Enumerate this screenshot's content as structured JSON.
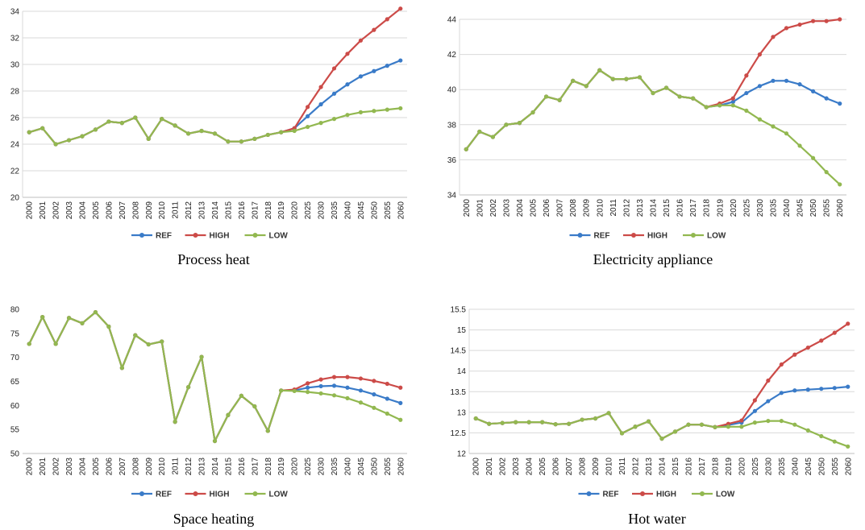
{
  "chart_data": [
    {
      "type": "line",
      "title": "Process heat",
      "categories": [
        "2000",
        "2001",
        "2002",
        "2003",
        "2004",
        "2005",
        "2006",
        "2007",
        "2008",
        "2009",
        "2010",
        "2011",
        "2012",
        "2013",
        "2014",
        "2015",
        "2016",
        "2017",
        "2018",
        "2019",
        "2020",
        "2025",
        "2030",
        "2035",
        "2040",
        "2045",
        "2050",
        "2055",
        "2060"
      ],
      "ylim": [
        20,
        34
      ],
      "ystep": 2,
      "ydecimals": 0,
      "grid": true,
      "legend": "bottom",
      "series": [
        {
          "name": "REF",
          "color": "#3a7bc8",
          "values": [
            24.9,
            25.2,
            24.0,
            24.3,
            24.6,
            25.1,
            25.7,
            25.6,
            26.0,
            24.4,
            25.9,
            25.4,
            24.8,
            25.0,
            24.8,
            24.2,
            24.2,
            24.4,
            24.7,
            24.9,
            25.2,
            26.1,
            27.0,
            27.8,
            28.5,
            29.1,
            29.5,
            29.9,
            30.3
          ]
        },
        {
          "name": "HIGH",
          "color": "#cc4b48",
          "values": [
            24.9,
            25.2,
            24.0,
            24.3,
            24.6,
            25.1,
            25.7,
            25.6,
            26.0,
            24.4,
            25.9,
            25.4,
            24.8,
            25.0,
            24.8,
            24.2,
            24.2,
            24.4,
            24.7,
            24.9,
            25.2,
            26.8,
            28.3,
            29.7,
            30.8,
            31.8,
            32.6,
            33.4,
            34.2
          ]
        },
        {
          "name": "LOW",
          "color": "#92b850",
          "values": [
            24.9,
            25.2,
            24.0,
            24.3,
            24.6,
            25.1,
            25.7,
            25.6,
            26.0,
            24.4,
            25.9,
            25.4,
            24.8,
            25.0,
            24.8,
            24.2,
            24.2,
            24.4,
            24.7,
            24.9,
            25.0,
            25.3,
            25.6,
            25.9,
            26.2,
            26.4,
            26.5,
            26.6,
            26.7
          ]
        }
      ]
    },
    {
      "type": "line",
      "title": "Electricity appliance",
      "categories": [
        "2000",
        "2001",
        "2002",
        "2003",
        "2004",
        "2005",
        "2006",
        "2007",
        "2008",
        "2009",
        "2010",
        "2011",
        "2012",
        "2013",
        "2014",
        "2015",
        "2016",
        "2017",
        "2018",
        "2019",
        "2020",
        "2025",
        "2030",
        "2035",
        "2040",
        "2045",
        "2050",
        "2055",
        "2060"
      ],
      "ylim": [
        34,
        44
      ],
      "ystep": 2,
      "ydecimals": 0,
      "grid": true,
      "legend": "bottom",
      "series": [
        {
          "name": "REF",
          "color": "#3a7bc8",
          "values": [
            36.6,
            37.6,
            37.3,
            38.0,
            38.1,
            38.7,
            39.6,
            39.4,
            40.5,
            40.2,
            41.1,
            40.6,
            40.6,
            40.7,
            39.8,
            40.1,
            39.6,
            39.5,
            39.0,
            39.1,
            39.3,
            39.8,
            40.2,
            40.5,
            40.5,
            40.3,
            39.9,
            39.5,
            39.2
          ]
        },
        {
          "name": "HIGH",
          "color": "#cc4b48",
          "values": [
            36.6,
            37.6,
            37.3,
            38.0,
            38.1,
            38.7,
            39.6,
            39.4,
            40.5,
            40.2,
            41.1,
            40.6,
            40.6,
            40.7,
            39.8,
            40.1,
            39.6,
            39.5,
            39.0,
            39.2,
            39.5,
            40.8,
            42.0,
            43.0,
            43.5,
            43.7,
            43.9,
            43.9,
            44.0
          ]
        },
        {
          "name": "LOW",
          "color": "#92b850",
          "values": [
            36.6,
            37.6,
            37.3,
            38.0,
            38.1,
            38.7,
            39.6,
            39.4,
            40.5,
            40.2,
            41.1,
            40.6,
            40.6,
            40.7,
            39.8,
            40.1,
            39.6,
            39.5,
            39.0,
            39.1,
            39.1,
            38.8,
            38.3,
            37.9,
            37.5,
            36.8,
            36.1,
            35.3,
            34.6
          ]
        }
      ]
    },
    {
      "type": "line",
      "title": "Space heating",
      "categories": [
        "2000",
        "2001",
        "2002",
        "2003",
        "2004",
        "2005",
        "2006",
        "2007",
        "2008",
        "2009",
        "2010",
        "2011",
        "2012",
        "2013",
        "2014",
        "2015",
        "2016",
        "2017",
        "2018",
        "2019",
        "2020",
        "2025",
        "2030",
        "2035",
        "2040",
        "2045",
        "2050",
        "2055",
        "2060"
      ],
      "ylim": [
        50,
        80
      ],
      "ystep": 5,
      "ydecimals": 0,
      "grid": false,
      "legend": "bottom",
      "series": [
        {
          "name": "REF",
          "color": "#3a7bc8",
          "values": [
            72.8,
            78.4,
            72.8,
            78.2,
            77.1,
            79.4,
            76.4,
            67.8,
            74.6,
            72.7,
            73.3,
            56.6,
            63.8,
            70.1,
            52.6,
            58.0,
            62.0,
            59.8,
            54.7,
            63.1,
            63.1,
            63.7,
            64.0,
            64.1,
            63.7,
            63.1,
            62.3,
            61.4,
            60.5
          ]
        },
        {
          "name": "HIGH",
          "color": "#cc4b48",
          "values": [
            72.8,
            78.4,
            72.8,
            78.2,
            77.1,
            79.4,
            76.4,
            67.8,
            74.6,
            72.7,
            73.3,
            56.6,
            63.8,
            70.1,
            52.6,
            58.0,
            62.0,
            59.8,
            54.7,
            63.1,
            63.3,
            64.6,
            65.4,
            65.9,
            65.9,
            65.6,
            65.1,
            64.5,
            63.7
          ]
        },
        {
          "name": "LOW",
          "color": "#92b850",
          "values": [
            72.8,
            78.4,
            72.8,
            78.2,
            77.1,
            79.4,
            76.4,
            67.8,
            74.6,
            72.7,
            73.3,
            56.6,
            63.8,
            70.1,
            52.6,
            58.0,
            62.0,
            59.8,
            54.7,
            63.1,
            63.0,
            62.8,
            62.5,
            62.1,
            61.5,
            60.6,
            59.5,
            58.3,
            57.0
          ]
        }
      ]
    },
    {
      "type": "line",
      "title": "Hot water",
      "categories": [
        "2000",
        "2001",
        "2002",
        "2003",
        "2004",
        "2005",
        "2006",
        "2007",
        "2008",
        "2009",
        "2010",
        "2011",
        "2012",
        "2013",
        "2014",
        "2015",
        "2016",
        "2017",
        "2018",
        "2019",
        "2020",
        "2025",
        "2030",
        "2035",
        "2040",
        "2045",
        "2050",
        "2055",
        "2060"
      ],
      "ylim": [
        12,
        15.5
      ],
      "ystep": 0.5,
      "ydecimals": 1,
      "grid": true,
      "legend": "bottom",
      "series": [
        {
          "name": "REF",
          "color": "#3a7bc8",
          "values": [
            12.85,
            12.72,
            12.74,
            12.76,
            12.76,
            12.76,
            12.71,
            12.72,
            12.82,
            12.85,
            12.98,
            12.49,
            12.65,
            12.78,
            12.36,
            12.53,
            12.7,
            12.7,
            12.64,
            12.69,
            12.75,
            13.03,
            13.27,
            13.47,
            13.53,
            13.55,
            13.57,
            13.59,
            13.62
          ]
        },
        {
          "name": "HIGH",
          "color": "#cc4b48",
          "values": [
            12.85,
            12.72,
            12.74,
            12.76,
            12.76,
            12.76,
            12.71,
            12.72,
            12.82,
            12.85,
            12.98,
            12.49,
            12.65,
            12.78,
            12.36,
            12.53,
            12.7,
            12.7,
            12.64,
            12.72,
            12.8,
            13.29,
            13.77,
            14.16,
            14.4,
            14.57,
            14.74,
            14.93,
            15.15
          ]
        },
        {
          "name": "LOW",
          "color": "#92b850",
          "values": [
            12.85,
            12.72,
            12.74,
            12.76,
            12.76,
            12.76,
            12.71,
            12.72,
            12.82,
            12.85,
            12.98,
            12.49,
            12.65,
            12.78,
            12.36,
            12.53,
            12.7,
            12.7,
            12.64,
            12.65,
            12.65,
            12.75,
            12.79,
            12.79,
            12.7,
            12.56,
            12.42,
            12.29,
            12.17
          ]
        }
      ]
    }
  ]
}
